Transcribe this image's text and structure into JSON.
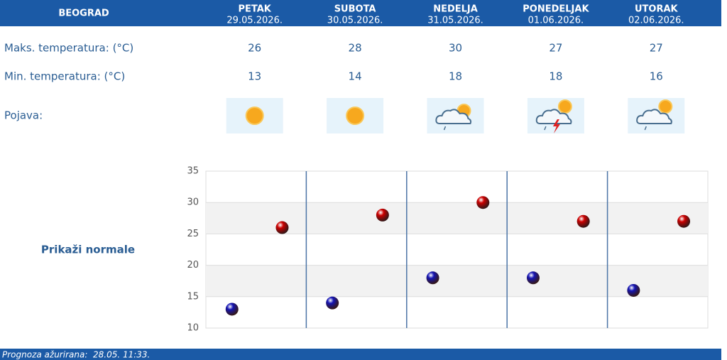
{
  "forecast": {
    "city": "BEOGRAD",
    "days": [
      {
        "name": "PETAK",
        "date": "29.05.2026."
      },
      {
        "name": "SUBOTA",
        "date": "30.05.2026."
      },
      {
        "name": "NEDELJA",
        "date": "31.05.2026."
      },
      {
        "name": "PONEDELJAK",
        "date": "01.06.2026."
      },
      {
        "name": "UTORAK",
        "date": "02.06.2026."
      }
    ],
    "condition_label": "Pojava:",
    "normals_link": "Prikaži normale",
    "updated": "Prognoza ažurirana:  28.05. 11:33."
  },
  "chart_data": {
    "type": "dot",
    "series": [
      {
        "name": "Maks. temperatura: (°C)",
        "color": "#cc0000",
        "values": [
          26,
          28,
          30,
          27,
          27
        ]
      },
      {
        "name": "Min. temperatura: (°C)",
        "color": "#1414b4",
        "values": [
          13,
          14,
          18,
          18,
          16
        ]
      }
    ],
    "ylim": [
      10,
      35
    ],
    "yticks": [
      10,
      15,
      20,
      25,
      30,
      35
    ],
    "grid": true
  }
}
